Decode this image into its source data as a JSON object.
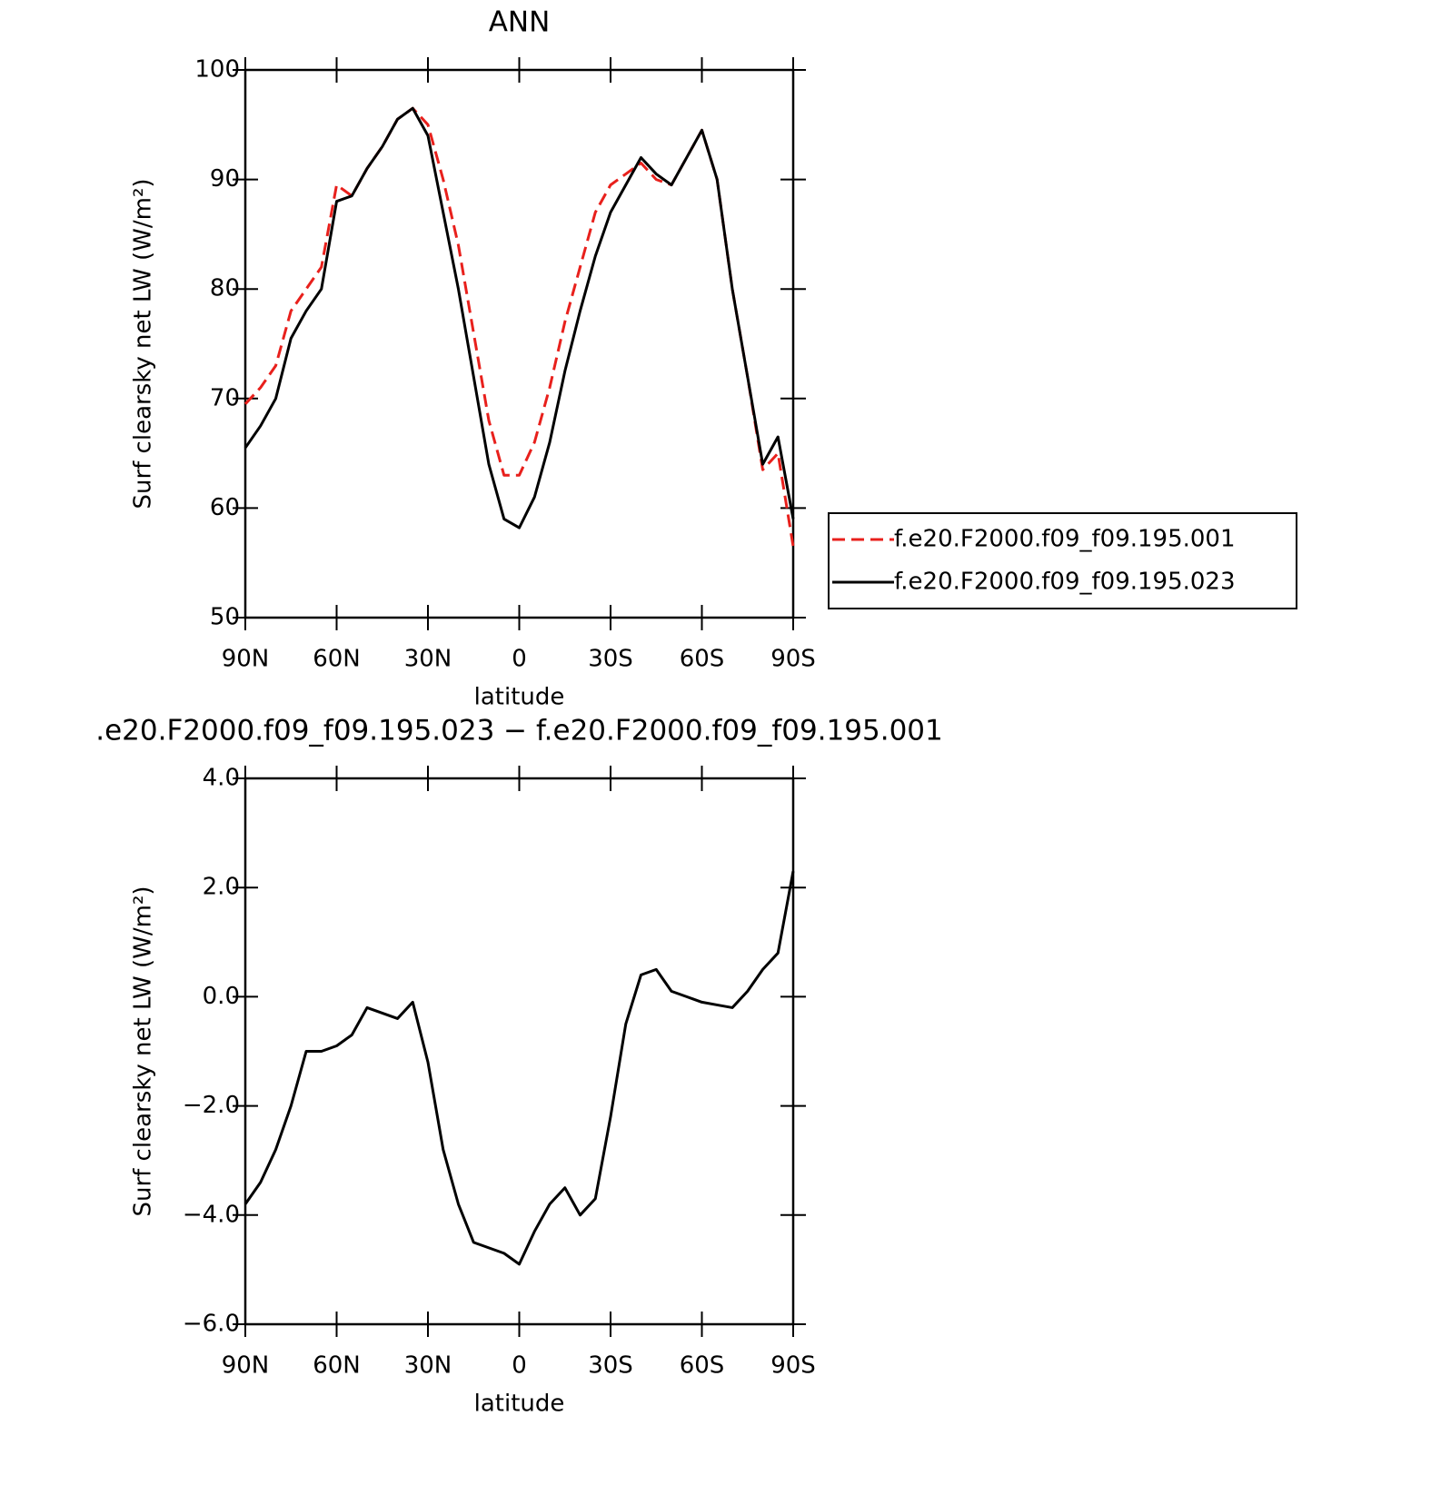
{
  "chart_data": [
    {
      "type": "line",
      "title": "ANN",
      "x_label": "latitude",
      "y_label": "Surf clearsky net LW (W/m²)",
      "x": [
        90,
        85,
        80,
        75,
        70,
        65,
        60,
        55,
        50,
        45,
        40,
        35,
        30,
        25,
        20,
        15,
        10,
        5,
        0,
        -5,
        -10,
        -15,
        -20,
        -25,
        -30,
        -35,
        -40,
        -45,
        -50,
        -55,
        -60,
        -65,
        -70,
        -75,
        -80,
        -85,
        -90
      ],
      "series": [
        {
          "name": "f.e20.F2000.f09_f09.195.001",
          "color": "#e8201c",
          "dash": "dashed",
          "values": [
            69.5,
            71,
            73,
            78,
            80,
            82,
            89.5,
            88.5,
            91,
            93,
            95.5,
            96.5,
            95,
            90,
            84,
            76,
            68,
            63,
            63,
            66,
            71,
            77,
            82,
            87,
            89.5,
            90.5,
            91.5,
            90,
            89.5,
            92,
            94.5,
            90,
            80,
            72,
            63.5,
            65,
            56.5
          ]
        },
        {
          "name": "f.e20.F2000.f09_f09.195.023",
          "color": "#000000",
          "dash": "solid",
          "values": [
            65.5,
            67.5,
            70,
            75.5,
            78,
            80,
            88,
            88.5,
            91,
            93,
            95.5,
            96.5,
            94,
            87,
            80,
            72,
            64,
            59,
            58.2,
            61,
            66,
            72.5,
            78,
            83,
            87,
            89.5,
            92,
            90.5,
            89.5,
            92,
            94.5,
            90,
            80,
            72,
            64,
            66.5,
            59
          ]
        }
      ],
      "xlim": [
        90,
        -90
      ],
      "xticks": [
        {
          "value": 90,
          "label": "90N"
        },
        {
          "value": 60,
          "label": "60N"
        },
        {
          "value": 30,
          "label": "30N"
        },
        0,
        {
          "value": -30,
          "label": "30S"
        },
        {
          "value": -60,
          "label": "60S"
        },
        {
          "value": -90,
          "label": "90S"
        }
      ],
      "ylim": [
        50,
        100
      ],
      "yticks": [
        50,
        60,
        70,
        80,
        90,
        100
      ],
      "legend": "right"
    },
    {
      "type": "line",
      "title": ".e20.F2000.f09_f09.195.023 − f.e20.F2000.f09_f09.195.001",
      "x_label": "latitude",
      "y_label": "Surf clearsky net LW (W/m²)",
      "x": [
        90,
        85,
        80,
        75,
        70,
        65,
        60,
        55,
        50,
        45,
        40,
        35,
        30,
        25,
        20,
        15,
        10,
        5,
        0,
        -5,
        -10,
        -15,
        -20,
        -25,
        -30,
        -35,
        -40,
        -45,
        -50,
        -55,
        -60,
        -65,
        -70,
        -75,
        -80,
        -85,
        -90
      ],
      "color": "#000000",
      "values": [
        -3.8,
        -3.4,
        -2.8,
        -2.0,
        -1.0,
        -1.0,
        -0.9,
        -0.7,
        -0.2,
        -0.3,
        -0.4,
        -0.1,
        -1.2,
        -2.8,
        -3.8,
        -4.5,
        -4.6,
        -4.7,
        -4.9,
        -4.3,
        -3.8,
        -3.5,
        -4.0,
        -3.7,
        -2.2,
        -0.5,
        0.4,
        0.5,
        0.1,
        0.0,
        -0.1,
        -0.15,
        -0.2,
        0.1,
        0.5,
        0.8,
        2.3
      ],
      "xlim": [
        90,
        -90
      ],
      "xticks": [
        {
          "value": 90,
          "label": "90N"
        },
        {
          "value": 60,
          "label": "60N"
        },
        {
          "value": 30,
          "label": "30N"
        },
        0,
        {
          "value": -30,
          "label": "30S"
        },
        {
          "value": -60,
          "label": "60S"
        },
        {
          "value": -90,
          "label": "90S"
        }
      ],
      "ylim": [
        -6,
        4
      ],
      "yticks": [
        {
          "value": -6,
          "label": "−6.0"
        },
        {
          "value": -4,
          "label": "−4.0"
        },
        {
          "value": -2,
          "label": "−2.0"
        },
        {
          "value": 0,
          "label": "0.0"
        },
        {
          "value": 2,
          "label": "2.0"
        },
        {
          "value": 4,
          "label": "4.0"
        }
      ]
    }
  ]
}
